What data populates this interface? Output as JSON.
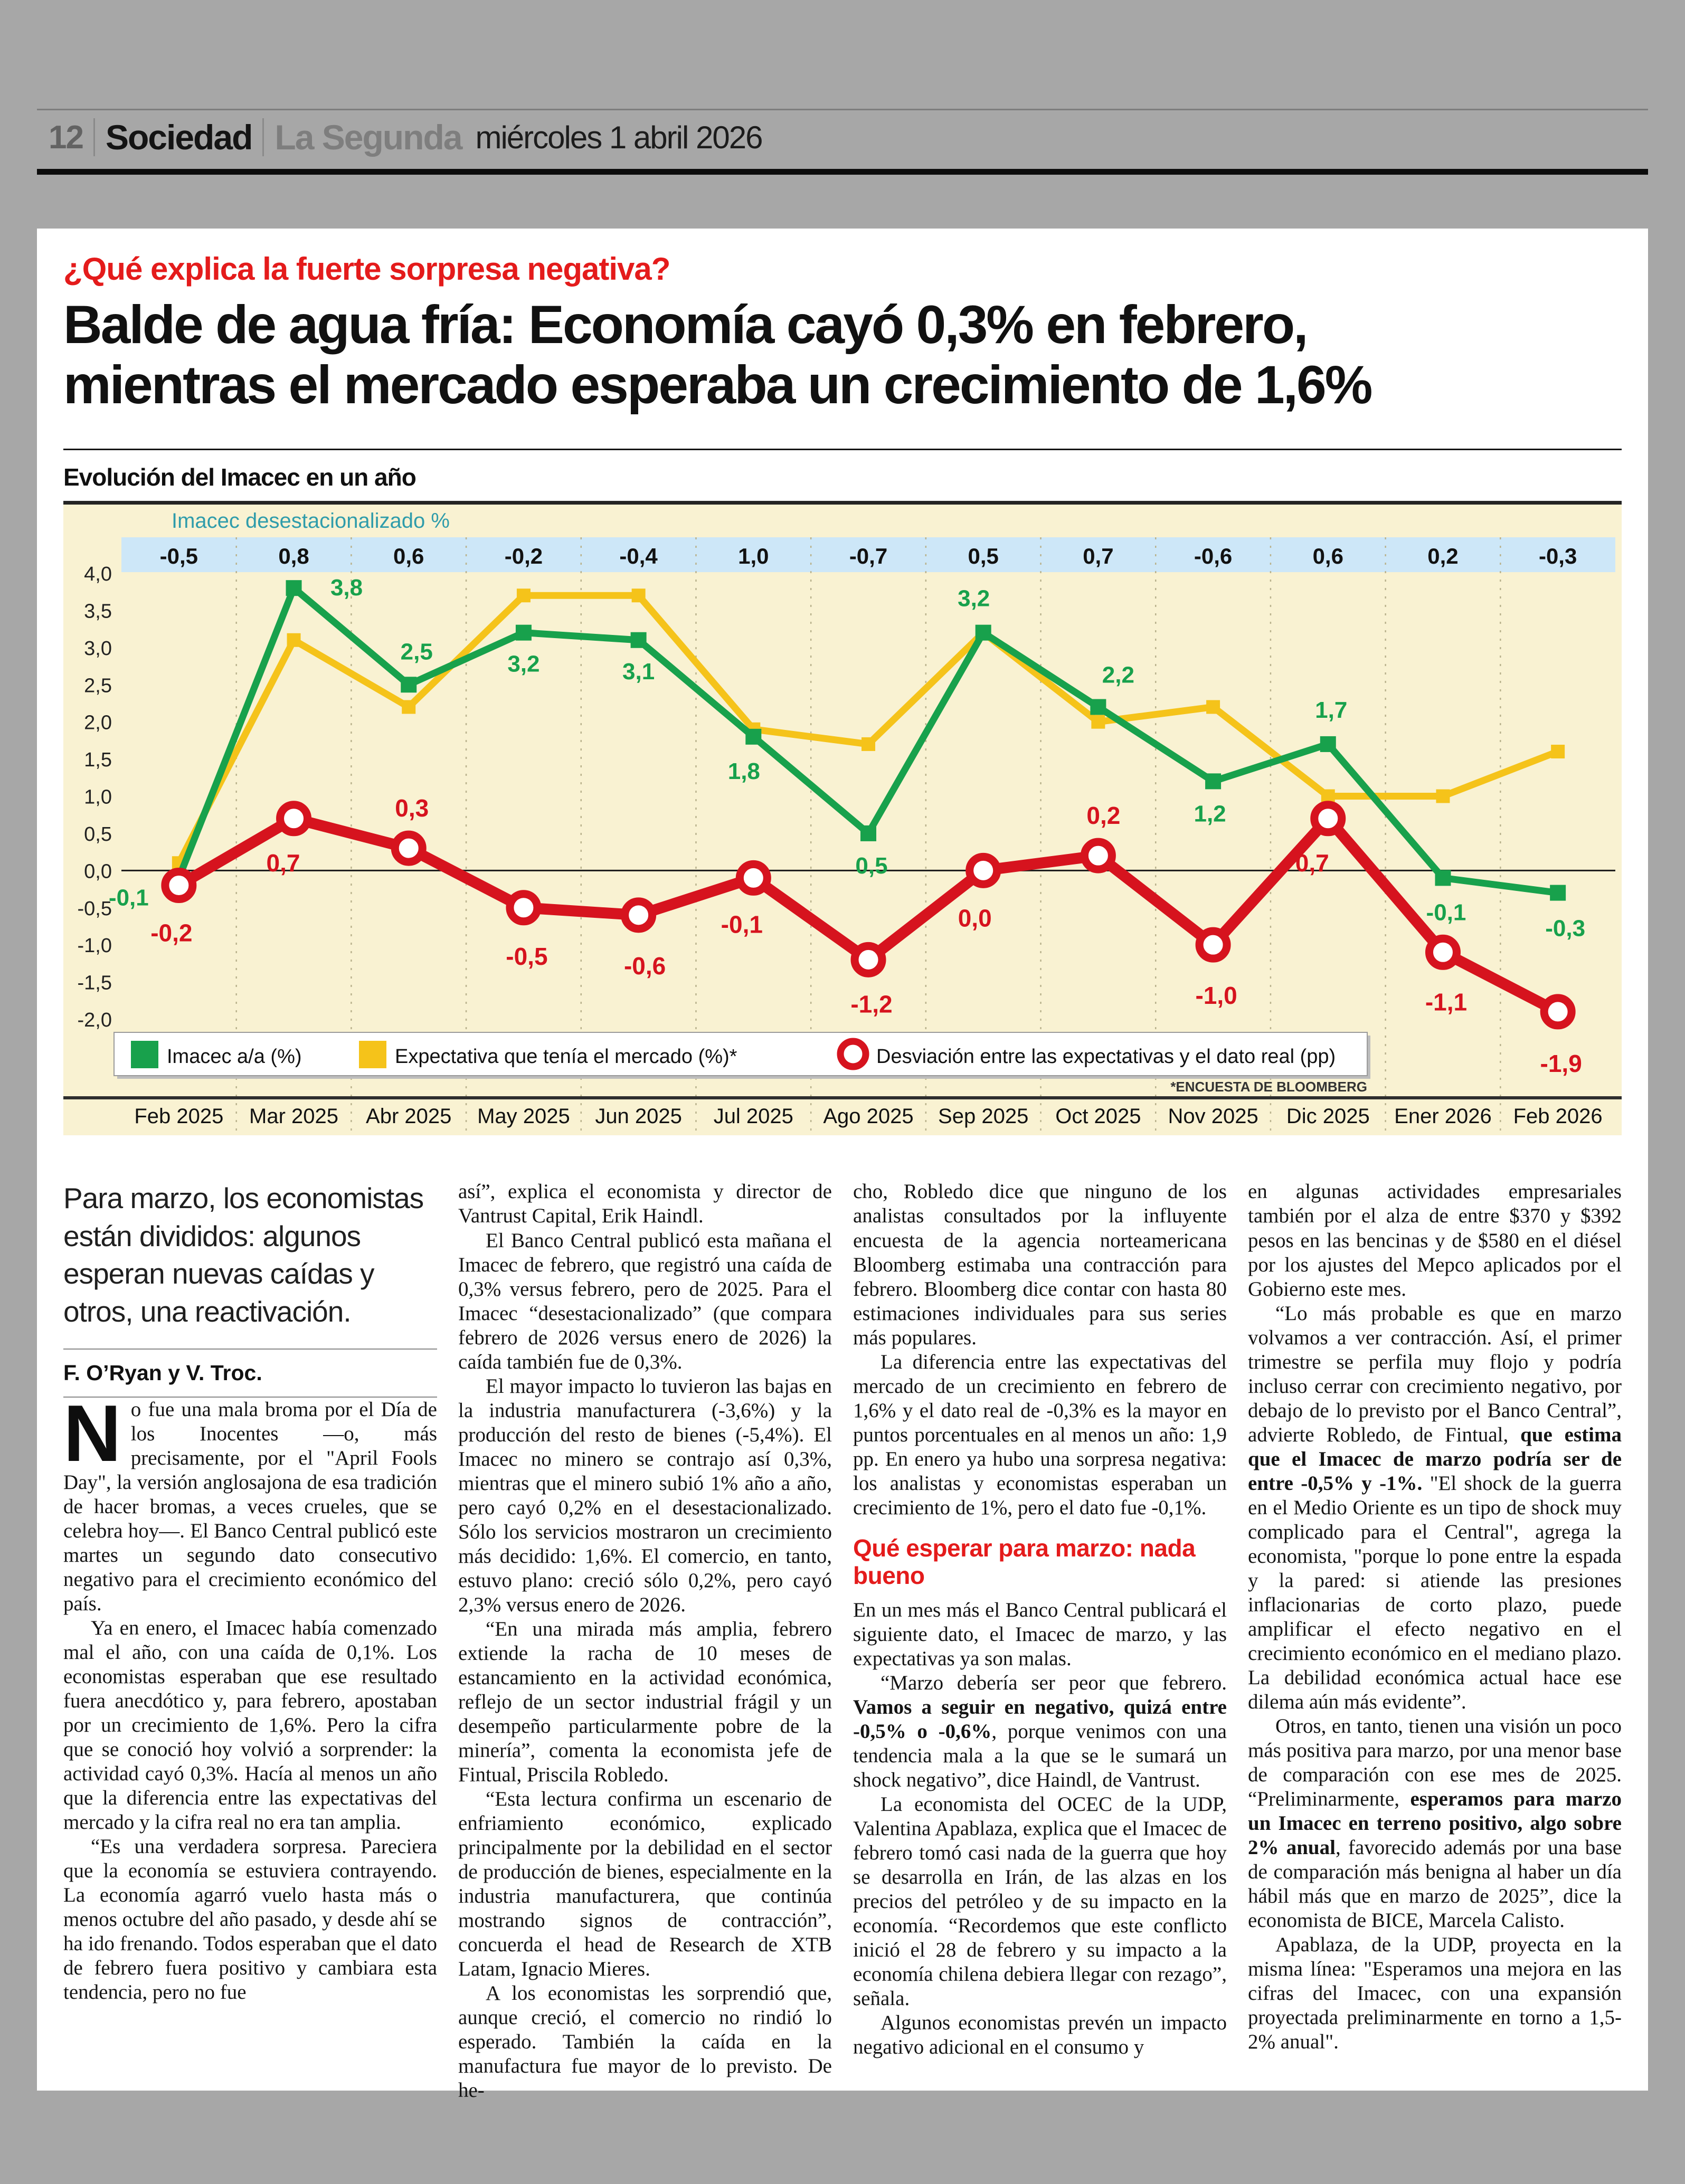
{
  "header": {
    "page_number": "12",
    "section": "Sociedad",
    "newspaper": "La Segunda",
    "date": "miércoles 1 abril 2026"
  },
  "kicker": "¿Qué explica la fuerte sorpresa negativa?",
  "headline": "Balde de agua fría: Economía cayó 0,3% en febrero,\nmientras el mercado esperaba un crecimiento de 1,6%",
  "chart_data": {
    "type": "line",
    "title": "Evolución del Imacec en un año",
    "background": "#f9f2d2",
    "x": [
      "Feb 2025",
      "Mar 2025",
      "Abr 2025",
      "May 2025",
      "Jun 2025",
      "Jul 2025",
      "Ago 2025",
      "Sep 2025",
      "Oct 2025",
      "Nov 2025",
      "Dic 2025",
      "Ener 2026",
      "Feb 2026"
    ],
    "band": {
      "label": "Imacec desestacionalizado %",
      "label_color": "#2f9cab",
      "bg": "#cde7f8",
      "values": [
        "-0,5",
        "0,8",
        "0,6",
        "-0,2",
        "-0,4",
        "1,0",
        "-0,7",
        "0,5",
        "0,7",
        "-0,6",
        "0,6",
        "0,2",
        "-0,3"
      ]
    },
    "ylim": [
      -2.0,
      4.0
    ],
    "yticks": [
      "4,0",
      "3,5",
      "3,0",
      "2,5",
      "2,0",
      "1,5",
      "1,0",
      "0,5",
      "0,0",
      "-0,5",
      "-1,0",
      "-1,5",
      "-2,0"
    ],
    "grid": "dashed-vertical",
    "zero_line": true,
    "series": [
      {
        "name": "Imacec a/a (%)",
        "color": "#18a14c",
        "marker": "square",
        "values": [
          -0.1,
          3.8,
          2.5,
          3.2,
          3.1,
          1.8,
          0.5,
          3.2,
          2.2,
          1.2,
          1.7,
          -0.1,
          -0.3
        ],
        "labels": [
          "-0,1",
          "3,8",
          "2,5",
          "3,2",
          "3,1",
          "1,8",
          "0,5",
          "3,2",
          "2,2",
          "1,2",
          "1,7",
          "-0,1",
          "-0,3"
        ],
        "label_dx": [
          -95,
          100,
          15,
          0,
          0,
          -18,
          6,
          -18,
          38,
          -6,
          6,
          6,
          14
        ],
        "label_dy": [
          52,
          14,
          -48,
          74,
          74,
          80,
          76,
          -50,
          -46,
          76,
          -50,
          80,
          82
        ]
      },
      {
        "name": "Expectativa que tenía el mercado (%)*",
        "color": "#f5c31a",
        "marker": "square",
        "values": [
          0.1,
          3.1,
          2.2,
          3.7,
          3.7,
          1.9,
          1.7,
          3.2,
          2.0,
          2.2,
          1.0,
          1.0,
          1.6
        ]
      },
      {
        "name": "Desviación entre las expectativas y el dato real (pp)",
        "color": "#d6131e",
        "marker": "ring",
        "values": [
          -0.2,
          0.7,
          0.3,
          -0.5,
          -0.6,
          -0.1,
          -1.2,
          0.0,
          0.2,
          -1.0,
          0.7,
          -1.1,
          -1.9
        ],
        "labels": [
          "-0,2",
          "0,7",
          "0,3",
          "-0,5",
          "-0,6",
          "-0,1",
          "-1,2",
          "0,0",
          "0,2",
          "-1,0",
          "0,7",
          "-1,1",
          "-1,9"
        ],
        "label_dx": [
          -14,
          -20,
          6,
          6,
          12,
          -22,
          6,
          -16,
          10,
          6,
          -30,
          6,
          6
        ],
        "label_dy": [
          106,
          100,
          -60,
          108,
          112,
          104,
          100,
          106,
          -60,
          112,
          100,
          110,
          114
        ]
      }
    ],
    "legend_position": "inside-bottom-left",
    "footnote": "*ENCUESTA DE BLOOMBERG"
  },
  "article": {
    "intro": "Para marzo, los economistas están divididos: algunos esperan nuevas caídas y otros, una reactivación.",
    "byline": "F. O’Ryan y V. Troc.",
    "columns": [
      [
        {
          "type": "intro"
        },
        {
          "type": "rule"
        },
        {
          "type": "byline"
        },
        {
          "type": "rule"
        },
        {
          "type": "dropcap",
          "cap": "N",
          "text": "o fue una mala broma por el Día de los Inocentes —o, más precisamente, por el \"April Fools Day\", la versión anglosajona de esa tradición de hacer bromas, a veces crueles, que se celebra hoy—. El Banco Central publicó este martes un segundo dato consecutivo negativo para el crecimiento económico del país."
        },
        {
          "type": "p",
          "text": "Ya en enero, el Imacec había comenzado mal el año, con una caída de 0,1%. Los economistas esperaban que ese resultado fuera anecdótico y, para febrero, apostaban por un crecimiento de 1,6%. Pero la cifra que se conoció hoy volvió a sorprender: la actividad cayó 0,3%. Hacía al menos un año que la diferencia entre las expectativas del mercado y la cifra real no era tan amplia."
        },
        {
          "type": "p",
          "text": "“Es una verdadera sorpresa. Pareciera que la economía se estuviera contrayendo. La economía agarró vuelo hasta más o menos octubre del año pasado, y desde ahí se ha ido frenando. Todos esperaban que el dato de febrero fuera positivo y cambiara esta tendencia, pero no fue"
        }
      ],
      [
        {
          "type": "p",
          "noindent": true,
          "text": "así”, explica el economista y director de Vantrust Capital, Erik Haindl."
        },
        {
          "type": "p",
          "text": "El Banco Central publicó esta mañana el Imacec de febrero, que registró una caída de 0,3% versus febrero, pero de 2025. Para el Imacec “desestacionalizado” (que compara febrero de 2026 versus enero de 2026) la caída también fue de 0,3%."
        },
        {
          "type": "p",
          "text": "El mayor impacto lo tuvieron las bajas en la industria manufacturera (-3,6%) y la producción del resto de bienes (-5,4%). El Imacec no minero se contrajo así 0,3%, mientras que el minero subió 1% año a año, pero cayó 0,2% en el desestacionalizado. Sólo los servicios mostraron un crecimiento más decidido: 1,6%. El comercio, en tanto, estuvo plano: creció sólo 0,2%, pero cayó 2,3% versus enero de 2026."
        },
        {
          "type": "p",
          "text": "“En una mirada más amplia, febrero extiende la racha de 10 meses de estancamiento en la actividad económica, reflejo de un sector industrial frágil y un desempeño particularmente pobre de la minería”, comenta la economista jefe de Fintual, Priscila Robledo."
        },
        {
          "type": "p",
          "text": "“Esta lectura confirma un escenario de enfriamiento económico, explicado principalmente por la debilidad en el sector de producción de bienes, especialmente en la industria manufacturera, que continúa mostrando signos de contracción”, concuerda el head de Research de XTB Latam, Ignacio Mieres."
        },
        {
          "type": "p",
          "text": "A los economistas les sorprendió que, aunque creció, el comercio no rindió lo esperado. También la caída en la manufactura fue mayor de lo previsto. De he-"
        }
      ],
      [
        {
          "type": "p",
          "noindent": true,
          "text": "cho, Robledo dice que ninguno de los analistas consultados por la influyente encuesta de la agencia norteamericana Bloomberg estimaba una contracción para febrero. Bloomberg dice contar con hasta 80 estimaciones individuales para sus series más populares."
        },
        {
          "type": "p",
          "text": "La diferencia entre las expectativas del mercado de un crecimiento en febrero de 1,6% y el dato real de -0,3% es la mayor en puntos porcentuales en al menos un año: 1,9 pp. En enero ya hubo una sorpresa negativa: los analistas y economistas esperaban un crecimiento de 1%, pero el dato fue -0,1%."
        },
        {
          "type": "subhead",
          "text": "Qué esperar para marzo: nada bueno"
        },
        {
          "type": "p",
          "noindent": true,
          "text": "En un mes más el Banco Central publicará el siguiente dato, el Imacec de marzo, y las expectativas ya son malas."
        },
        {
          "type": "p",
          "text": "“Marzo debería ser peor que febrero. **Vamos a seguir en negativo, quizá entre -0,5% o -0,6%**, porque venimos con una tendencia mala a la que se le sumará un shock negativo”, dice Haindl, de Vantrust."
        },
        {
          "type": "p",
          "text": "La economista del OCEC de la UDP, Valentina Apablaza, explica que el Imacec de febrero tomó casi nada de la guerra que hoy se desarrolla en Irán, de las alzas en los precios del petróleo y de su impacto en la economía. “Recordemos que este conflicto inició el 28 de febrero y su impacto a la economía chilena debiera llegar con rezago”, señala."
        },
        {
          "type": "p",
          "text": "Algunos economistas prevén un impacto negativo adicional en el consumo y"
        }
      ],
      [
        {
          "type": "p",
          "noindent": true,
          "text": "en algunas actividades empresariales también por el alza de entre $370 y $392 pesos en las bencinas y de $580 en el diésel por los ajustes del Mepco aplicados por el Gobierno este mes."
        },
        {
          "type": "p",
          "text": "“Lo más probable es que en marzo volvamos a ver contracción. Así, el primer trimestre se perfila muy flojo y podría incluso cerrar con crecimiento negativo, por debajo de lo previsto por el Banco Central”, advierte Robledo, de Fintual, **que estima que el Imacec de marzo podría ser de entre -0,5% y -1%.** \"El shock de la guerra en el Medio Oriente es un tipo de shock muy complicado para el Central\", agrega la economista, \"porque lo pone entre la espada y la pared: si atiende las presiones inflacionarias de corto plazo, puede amplificar el efecto negativo en el crecimiento económico en el mediano plazo. La debilidad económica actual hace ese dilema aún más evidente”."
        },
        {
          "type": "p",
          "text": "Otros, en tanto, tienen una visión un poco más positiva para marzo, por una menor base de comparación con ese mes de 2025. “Preliminarmente, **esperamos para marzo un Imacec en terreno positivo, algo sobre 2% anual**, favorecido además por una base de comparación más benigna al haber un día hábil más que en marzo de 2025”, dice la economista de BICE, Marcela Calisto."
        },
        {
          "type": "p",
          "text": "Apablaza, de la UDP, proyecta en la misma línea: \"Esperamos una mejora en las cifras del Imacec, con una expansión proyectada preliminarmente en torno a 1,5-2% anual\"."
        }
      ]
    ]
  }
}
